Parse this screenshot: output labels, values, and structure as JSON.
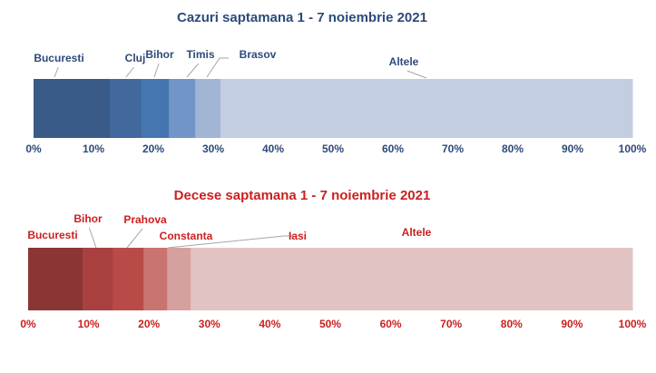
{
  "chart_data": [
    {
      "type": "bar",
      "stacked": true,
      "orientation": "horizontal",
      "title": "Cazuri saptamana 1 - 7 noiembrie 2021",
      "categories": [
        "Bucuresti",
        "Cluj",
        "Bihor",
        "Timis",
        "Brasov",
        "Altele"
      ],
      "values": [
        12.7,
        5.3,
        4.6,
        4.4,
        4.2,
        68.8
      ],
      "colors": [
        "#3a5a87",
        "#41699e",
        "#4576b0",
        "#7195c6",
        "#a3b5d4",
        "#c3cee2"
      ],
      "text_color": "#2e4a7a",
      "xlim": [
        0,
        100
      ],
      "ticks": [
        "0%",
        "10%",
        "20%",
        "30%",
        "40%",
        "50%",
        "60%",
        "70%",
        "80%",
        "90%",
        "100%"
      ],
      "grid": false
    },
    {
      "type": "bar",
      "stacked": true,
      "orientation": "horizontal",
      "title": "Decese saptamana 1 - 7 noiembrie 2021",
      "categories": [
        "Bucuresti",
        "Bihor",
        "Prahova",
        "Constanta",
        "Iasi",
        "Altele"
      ],
      "values": [
        9.0,
        5.0,
        5.1,
        3.9,
        3.9,
        73.1
      ],
      "colors": [
        "#8b3535",
        "#a94040",
        "#b84b48",
        "#c97470",
        "#d6a09e",
        "#e2c3c3"
      ],
      "text_color": "#cc1f1f",
      "xlim": [
        0,
        100
      ],
      "ticks": [
        "0%",
        "10%",
        "20%",
        "30%",
        "40%",
        "50%",
        "60%",
        "70%",
        "80%",
        "90%",
        "100%"
      ],
      "grid": false
    }
  ]
}
